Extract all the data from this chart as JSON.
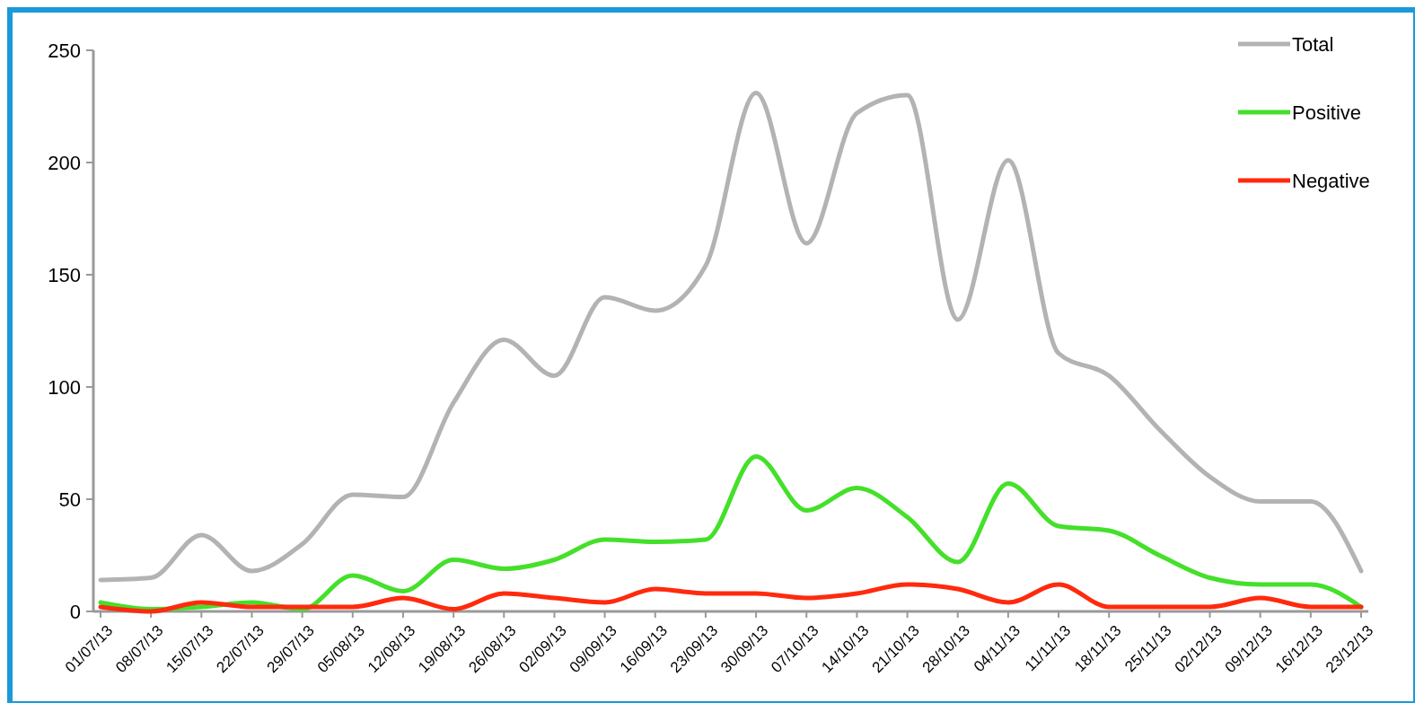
{
  "chart_data": {
    "type": "line",
    "categories": [
      "01/07/13",
      "08/07/13",
      "15/07/13",
      "22/07/13",
      "29/07/13",
      "05/08/13",
      "12/08/13",
      "19/08/13",
      "26/08/13",
      "02/09/13",
      "09/09/13",
      "16/09/13",
      "23/09/13",
      "30/09/13",
      "07/10/13",
      "14/10/13",
      "21/10/13",
      "28/10/13",
      "04/11/13",
      "11/11/13",
      "18/11/13",
      "25/11/13",
      "02/12/13",
      "09/12/13",
      "16/12/13",
      "23/12/13"
    ],
    "series": [
      {
        "name": "Total",
        "color": "#b3b3b3",
        "values": [
          14,
          15,
          34,
          18,
          30,
          52,
          51,
          93,
          121,
          105,
          140,
          134,
          154,
          231,
          164,
          222,
          230,
          130,
          201,
          115,
          105,
          81,
          60,
          49,
          49,
          18
        ]
      },
      {
        "name": "Positive",
        "color": "#44e02a",
        "values": [
          4,
          1,
          2,
          4,
          1,
          16,
          9,
          23,
          19,
          23,
          32,
          31,
          32,
          69,
          45,
          55,
          42,
          22,
          57,
          38,
          36,
          25,
          15,
          12,
          12,
          2
        ]
      },
      {
        "name": "Negative",
        "color": "#ff2a0e",
        "values": [
          2,
          0,
          4,
          2,
          2,
          2,
          6,
          1,
          8,
          6,
          4,
          10,
          8,
          8,
          6,
          8,
          12,
          10,
          4,
          12,
          2,
          2,
          2,
          6,
          2,
          2
        ]
      }
    ],
    "ylim": [
      0,
      250
    ],
    "yticks": [
      0,
      50,
      100,
      150,
      200,
      250
    ],
    "grid": false,
    "legend": "top right",
    "marker": "none",
    "line_style": "solid"
  }
}
